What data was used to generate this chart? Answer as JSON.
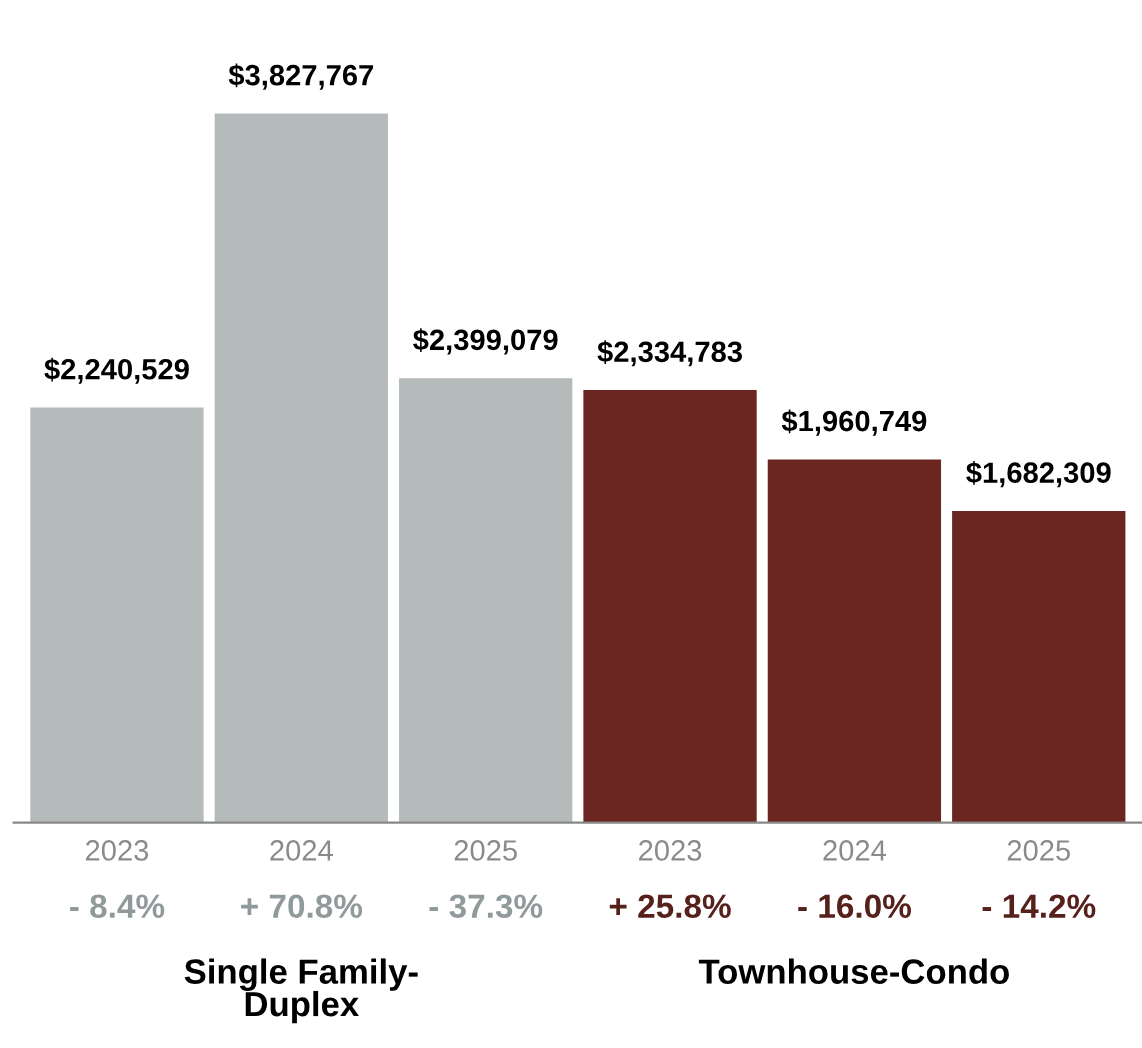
{
  "chart_data": {
    "type": "bar",
    "categories": [
      "2023",
      "2024",
      "2025",
      "2023",
      "2024",
      "2025"
    ],
    "values": [
      2240529,
      3827767,
      2399079,
      2334783,
      1960749,
      1682309
    ],
    "colors": [
      "#b5babb",
      "#b5babb",
      "#b5babb",
      "#6b2621",
      "#6b2621",
      "#6b2621"
    ],
    "value_labels": [
      "$2,240,529",
      "$3,827,767",
      "$2,399,079",
      "$2,334,783",
      "$1,960,749",
      "$1,682,309"
    ],
    "annotations": [
      "- 8.4%",
      "+ 70.8%",
      "- 37.3%",
      "+ 25.8%",
      "- 16.0%",
      "- 14.2%",
      "Single Family-\nDuplex",
      "Townhouse-Condo"
    ],
    "grid": false,
    "legend": false
  }
}
